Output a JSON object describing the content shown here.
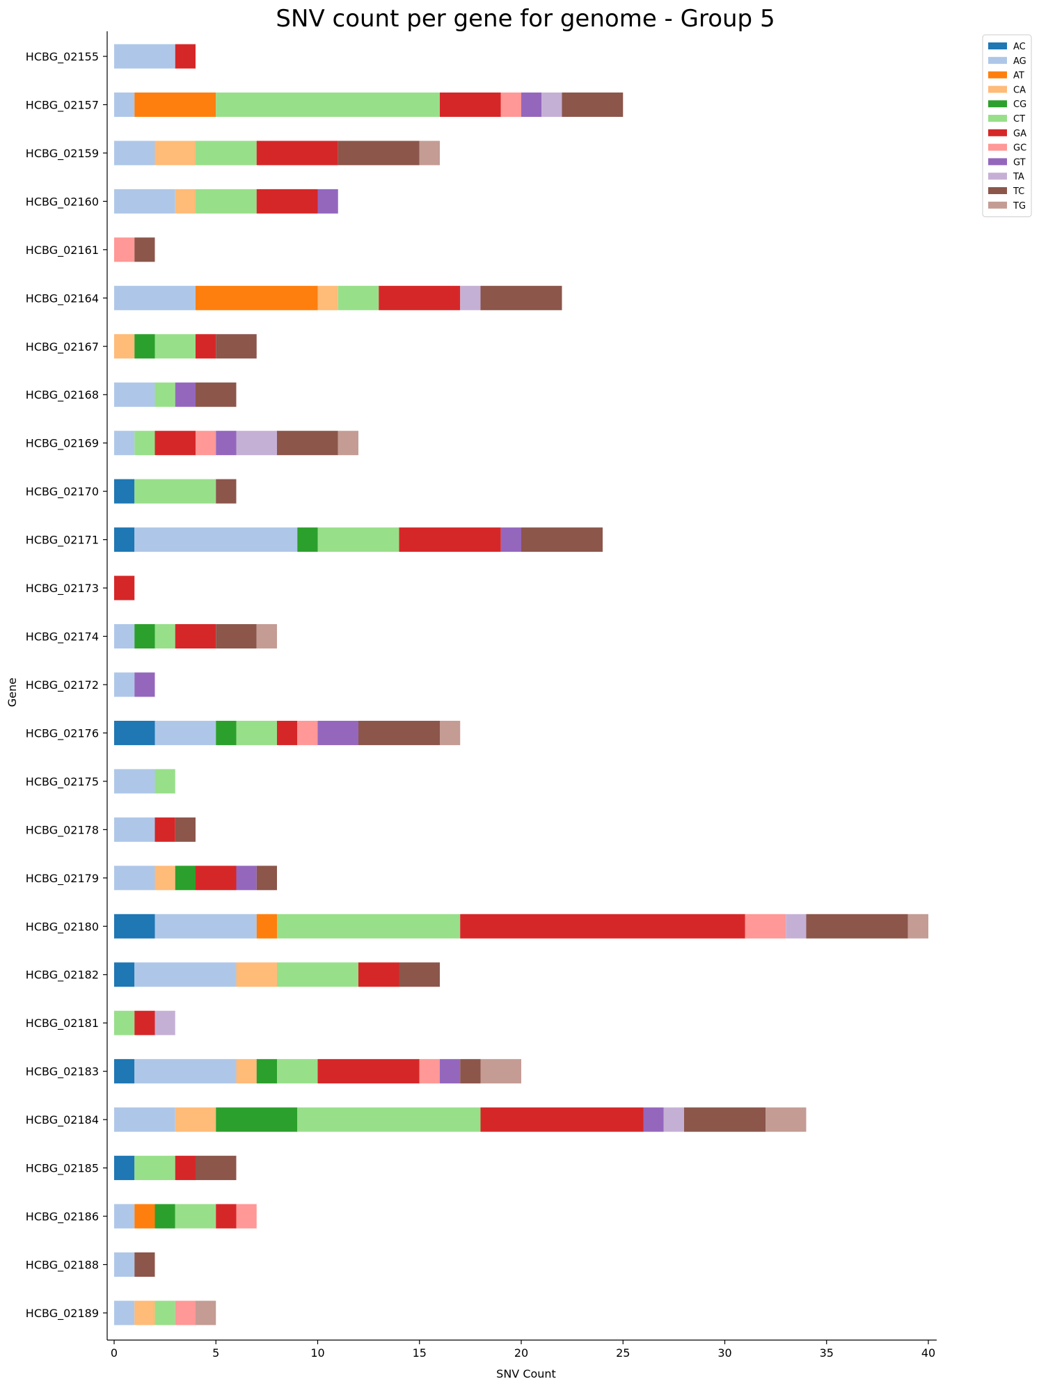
{
  "chart_data": {
    "type": "bar",
    "orientation": "horizontal",
    "stacked": true,
    "title": "SNV count per gene for genome - Group 5",
    "xlabel": "SNV Count",
    "ylabel": "Gene",
    "xlim": [
      0,
      40
    ],
    "xticks": [
      0,
      5,
      10,
      15,
      20,
      25,
      30,
      35,
      40
    ],
    "grid": false,
    "legend_position": "top-right",
    "categories": [
      "HCBG_02155",
      "HCBG_02157",
      "HCBG_02159",
      "HCBG_02160",
      "HCBG_02161",
      "HCBG_02164",
      "HCBG_02167",
      "HCBG_02168",
      "HCBG_02169",
      "HCBG_02170",
      "HCBG_02171",
      "HCBG_02173",
      "HCBG_02174",
      "HCBG_02172",
      "HCBG_02176",
      "HCBG_02175",
      "HCBG_02178",
      "HCBG_02179",
      "HCBG_02180",
      "HCBG_02182",
      "HCBG_02181",
      "HCBG_02183",
      "HCBG_02184",
      "HCBG_02185",
      "HCBG_02186",
      "HCBG_02188",
      "HCBG_02189"
    ],
    "series": [
      {
        "name": "AC",
        "color": "#1f77b4",
        "values": [
          0,
          0,
          0,
          0,
          0,
          0,
          0,
          0,
          0,
          1,
          1,
          0,
          0,
          0,
          2,
          0,
          0,
          0,
          2,
          1,
          0,
          1,
          0,
          1,
          0,
          0,
          0
        ]
      },
      {
        "name": "AG",
        "color": "#aec7e8",
        "values": [
          3,
          1,
          2,
          3,
          0,
          4,
          0,
          2,
          1,
          0,
          8,
          0,
          1,
          1,
          3,
          2,
          2,
          2,
          5,
          5,
          0,
          5,
          3,
          0,
          1,
          1,
          1
        ]
      },
      {
        "name": "AT",
        "color": "#ff7f0e",
        "values": [
          0,
          4,
          0,
          0,
          0,
          6,
          0,
          0,
          0,
          0,
          0,
          0,
          0,
          0,
          0,
          0,
          0,
          0,
          1,
          0,
          0,
          0,
          0,
          0,
          1,
          0,
          0
        ]
      },
      {
        "name": "CA",
        "color": "#ffbb78",
        "values": [
          0,
          0,
          2,
          1,
          0,
          1,
          1,
          0,
          0,
          0,
          0,
          0,
          0,
          0,
          0,
          0,
          0,
          1,
          0,
          2,
          0,
          1,
          2,
          0,
          0,
          0,
          1
        ]
      },
      {
        "name": "CG",
        "color": "#2ca02c",
        "values": [
          0,
          0,
          0,
          0,
          0,
          0,
          1,
          0,
          0,
          0,
          1,
          0,
          1,
          0,
          1,
          0,
          0,
          1,
          0,
          0,
          0,
          1,
          4,
          0,
          1,
          0,
          0
        ]
      },
      {
        "name": "CT",
        "color": "#98df8a",
        "values": [
          0,
          11,
          3,
          3,
          0,
          2,
          2,
          1,
          1,
          4,
          4,
          0,
          1,
          0,
          2,
          1,
          0,
          0,
          9,
          4,
          1,
          2,
          9,
          2,
          2,
          0,
          1
        ]
      },
      {
        "name": "GA",
        "color": "#d62728",
        "values": [
          1,
          3,
          4,
          3,
          0,
          4,
          1,
          0,
          2,
          0,
          5,
          1,
          2,
          0,
          1,
          0,
          1,
          2,
          14,
          2,
          1,
          5,
          8,
          1,
          1,
          0,
          0
        ]
      },
      {
        "name": "GC",
        "color": "#ff9896",
        "values": [
          0,
          1,
          0,
          0,
          1,
          0,
          0,
          0,
          1,
          0,
          0,
          0,
          0,
          0,
          1,
          0,
          0,
          0,
          2,
          0,
          0,
          1,
          0,
          0,
          1,
          0,
          1
        ]
      },
      {
        "name": "GT",
        "color": "#9467bd",
        "values": [
          0,
          1,
          0,
          1,
          0,
          0,
          0,
          1,
          1,
          0,
          1,
          0,
          0,
          1,
          2,
          0,
          0,
          1,
          0,
          0,
          0,
          1,
          1,
          0,
          0,
          0,
          0
        ]
      },
      {
        "name": "TA",
        "color": "#c5b0d5",
        "values": [
          0,
          1,
          0,
          0,
          0,
          1,
          0,
          0,
          2,
          0,
          0,
          0,
          0,
          0,
          0,
          0,
          0,
          0,
          1,
          0,
          1,
          0,
          1,
          0,
          0,
          0,
          0
        ]
      },
      {
        "name": "TC",
        "color": "#8c564b",
        "values": [
          0,
          3,
          4,
          0,
          1,
          4,
          2,
          2,
          3,
          1,
          4,
          0,
          2,
          0,
          4,
          0,
          1,
          1,
          5,
          2,
          0,
          1,
          4,
          2,
          0,
          1,
          0
        ]
      },
      {
        "name": "TG",
        "color": "#c49c94",
        "values": [
          0,
          0,
          1,
          0,
          0,
          0,
          0,
          0,
          1,
          0,
          0,
          0,
          1,
          0,
          1,
          0,
          0,
          0,
          1,
          0,
          0,
          2,
          2,
          0,
          0,
          0,
          1
        ]
      }
    ]
  }
}
